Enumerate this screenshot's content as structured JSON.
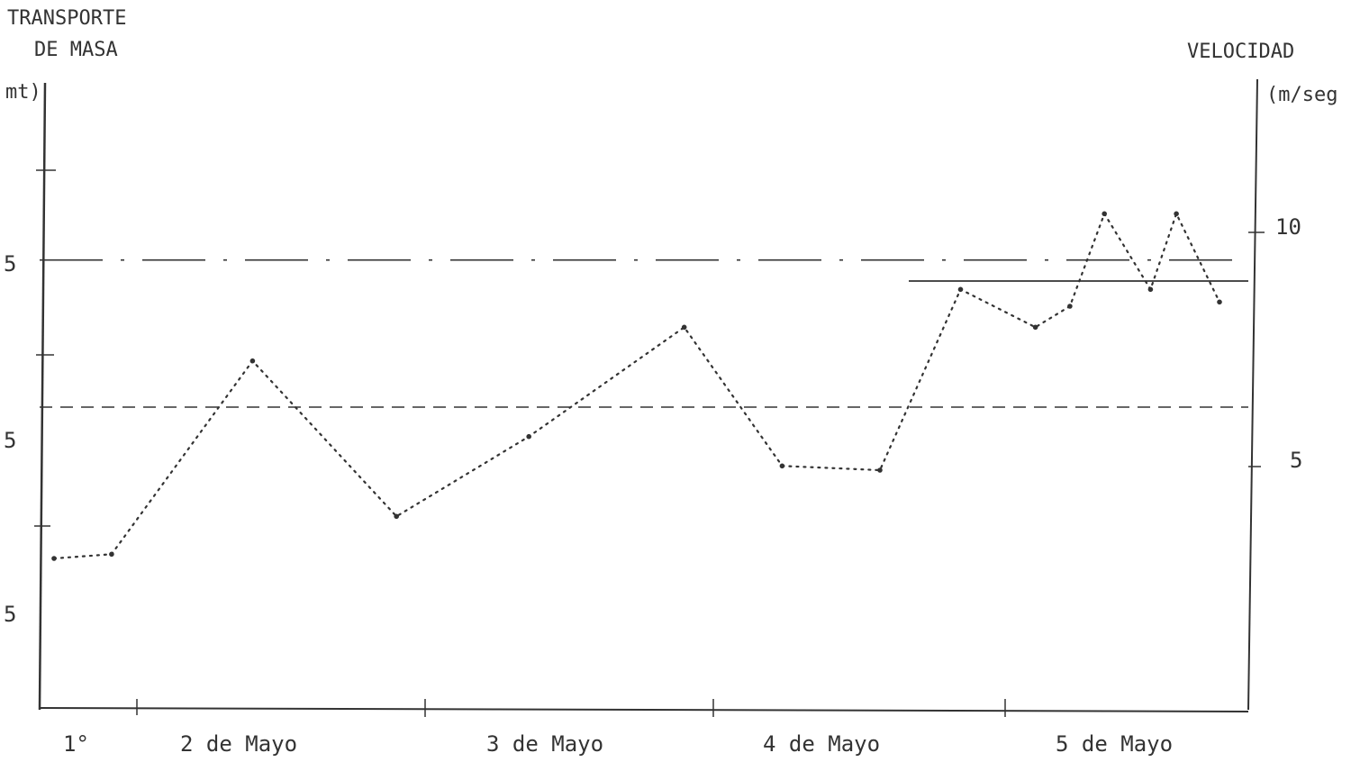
{
  "colors": {
    "ink": "#333333",
    "background": "#ffffff"
  },
  "chart_data": {
    "type": "line",
    "left_axis": {
      "title_lines": [
        "TRANSPORTE",
        "DE MASA"
      ],
      "unit": "mt)",
      "tick_labels": [
        "5",
        "5",
        "5"
      ]
    },
    "right_axis": {
      "title": "VELOCIDAD",
      "unit": "(m/seg",
      "tick_labels": [
        "10",
        "5"
      ],
      "range": [
        0,
        15
      ]
    },
    "x_axis": {
      "labels": [
        "1°",
        "2 de Mayo",
        "3 de Mayo",
        "4 de Mayo",
        "5 de Mayo"
      ],
      "range": [
        0,
        4.2
      ]
    },
    "series": [
      {
        "style": "dotted",
        "axis": "right",
        "x": [
          0.05,
          0.25,
          0.74,
          1.24,
          1.7,
          2.24,
          2.58,
          2.92,
          3.2,
          3.46,
          3.58,
          3.7,
          3.86,
          3.95,
          4.1
        ],
        "y": [
          3.6,
          3.7,
          8.3,
          4.6,
          6.5,
          9.1,
          5.8,
          5.7,
          10.0,
          9.1,
          9.6,
          11.8,
          10.0,
          11.8,
          9.7
        ]
      }
    ],
    "reference_lines": [
      {
        "style": "dash-dot",
        "axis": "right",
        "x": [
          0.0,
          4.2
        ],
        "y": [
          10.7,
          10.7
        ]
      },
      {
        "style": "solid",
        "axis": "right",
        "x": [
          3.02,
          4.2
        ],
        "y": [
          10.2,
          10.2
        ]
      },
      {
        "style": "dashed",
        "axis": "right",
        "x": [
          0.0,
          4.2
        ],
        "y": [
          7.2,
          7.2
        ]
      }
    ]
  }
}
